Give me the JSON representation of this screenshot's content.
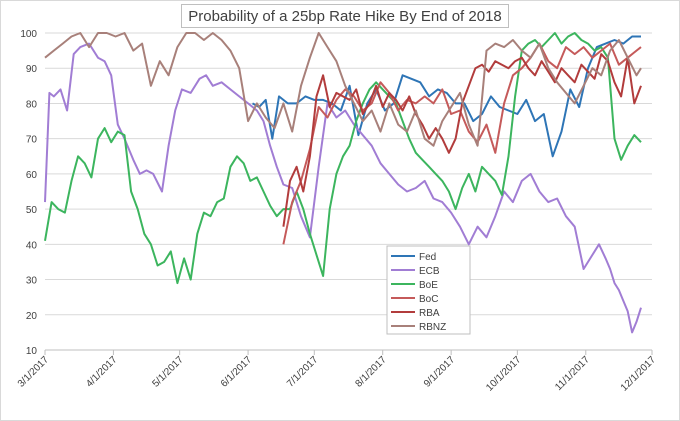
{
  "chart_data": {
    "type": "line",
    "title": "Probability of a 25bp Rate Hike By End of 2018",
    "xlabel": "",
    "ylabel": "",
    "ylim": [
      10,
      100
    ],
    "yticks": [
      10,
      20,
      30,
      40,
      50,
      60,
      70,
      80,
      90,
      100
    ],
    "xlim": [
      "3/1/2017",
      "12/1/2017"
    ],
    "x_tick_labels": [
      "3/1/2017",
      "4/1/2017",
      "5/1/2017",
      "6/1/2017",
      "7/1/2017",
      "8/1/2017",
      "9/1/2017",
      "10/1/2017",
      "11/1/2017",
      "12/1/2017"
    ],
    "grid": "horizontal",
    "legend_position": "lower-center",
    "series": [
      {
        "name": "Fed",
        "color": "#2e75b6",
        "x": [
          94,
          97,
          100,
          103,
          106,
          110,
          114,
          118,
          122,
          126,
          130,
          134,
          138,
          142,
          146,
          150,
          154,
          158,
          162,
          166,
          170,
          174,
          178,
          182,
          186,
          190,
          194,
          198,
          202,
          206,
          210,
          214,
          218,
          222,
          226,
          230,
          234,
          238,
          242,
          246,
          250,
          254,
          258,
          262,
          266,
          270
        ],
        "y": [
          80,
          79,
          81,
          70,
          82,
          80,
          80,
          82,
          81,
          81,
          80,
          78,
          85,
          71,
          80,
          84,
          78,
          80,
          88,
          87,
          86,
          82,
          84,
          83,
          80,
          80,
          75,
          77,
          82,
          79,
          78,
          77,
          81,
          75,
          77,
          65,
          72,
          84,
          79,
          90,
          96,
          97,
          98,
          97,
          99,
          99
        ]
      },
      {
        "name": "ECB",
        "color": "#a17dd4",
        "x": [
          0,
          2,
          4,
          7,
          10,
          13,
          16,
          20,
          24,
          27,
          30,
          33,
          36,
          40,
          43,
          46,
          49,
          53,
          56,
          59,
          62,
          66,
          70,
          73,
          76,
          80,
          84,
          88,
          92,
          96,
          99,
          102,
          105,
          108,
          112,
          116,
          120,
          124,
          128,
          132,
          136,
          140,
          144,
          148,
          152,
          156,
          160,
          164,
          168,
          172,
          176,
          180,
          184,
          188,
          192,
          196,
          200,
          204,
          208,
          212,
          216,
          220,
          224,
          228,
          232,
          236,
          240,
          244,
          248,
          251,
          254,
          256,
          258,
          260,
          262,
          264,
          266,
          268,
          270
        ],
        "y": [
          52,
          83,
          82,
          84,
          78,
          94,
          96,
          97,
          93,
          92,
          88,
          74,
          70,
          64,
          60,
          61,
          60,
          55,
          68,
          78,
          84,
          83,
          87,
          88,
          85,
          86,
          84,
          82,
          80,
          78,
          75,
          68,
          62,
          57,
          56,
          48,
          42,
          62,
          80,
          76,
          78,
          74,
          71,
          68,
          63,
          60,
          57,
          55,
          56,
          58,
          53,
          52,
          49,
          45,
          40,
          45,
          42,
          48,
          55,
          52,
          58,
          60,
          55,
          52,
          53,
          48,
          45,
          33,
          37,
          40,
          36,
          33,
          29,
          27,
          24,
          21,
          15,
          18,
          22
        ]
      },
      {
        "name": "BoE",
        "color": "#3cb55e",
        "x": [
          0,
          3,
          6,
          9,
          12,
          15,
          18,
          21,
          24,
          27,
          30,
          33,
          36,
          39,
          42,
          45,
          48,
          51,
          54,
          57,
          60,
          63,
          66,
          69,
          72,
          75,
          78,
          81,
          84,
          87,
          90,
          93,
          96,
          99,
          102,
          105,
          108,
          111,
          114,
          117,
          120,
          123,
          126,
          129,
          132,
          135,
          138,
          141,
          144,
          147,
          150,
          153,
          156,
          159,
          162,
          165,
          168,
          171,
          174,
          177,
          180,
          183,
          186,
          189,
          192,
          195,
          198,
          201,
          204,
          207,
          210,
          213,
          216,
          219,
          222,
          225,
          228,
          231,
          234,
          237,
          240,
          243,
          246,
          249,
          252,
          255,
          258,
          261,
          264,
          267,
          270
        ],
        "y": [
          41,
          52,
          50,
          49,
          58,
          65,
          63,
          59,
          70,
          73,
          69,
          72,
          71,
          55,
          50,
          43,
          40,
          34,
          35,
          38,
          29,
          36,
          30,
          43,
          49,
          48,
          52,
          53,
          62,
          65,
          63,
          58,
          59,
          55,
          51,
          48,
          50,
          50,
          55,
          50,
          43,
          37,
          31,
          50,
          60,
          65,
          68,
          75,
          80,
          84,
          86,
          84,
          82,
          80,
          75,
          70,
          66,
          64,
          62,
          60,
          58,
          55,
          50,
          56,
          60,
          55,
          62,
          60,
          58,
          54,
          65,
          82,
          95,
          97,
          98,
          96,
          98,
          100,
          97,
          99,
          100,
          98,
          97,
          95,
          96,
          93,
          70,
          64,
          68,
          71,
          69
        ]
      },
      {
        "name": "BoC",
        "color": "#c55a5a",
        "x": [
          108,
          112,
          116,
          120,
          124,
          128,
          132,
          136,
          140,
          144,
          148,
          152,
          156,
          160,
          164,
          168,
          172,
          176,
          180,
          184,
          188,
          192,
          196,
          200,
          204,
          208,
          212,
          216,
          220,
          224,
          228,
          232,
          236,
          240,
          244,
          248,
          252,
          256,
          260,
          264,
          268,
          270
        ],
        "y": [
          40,
          52,
          58,
          67,
          79,
          76,
          81,
          84,
          82,
          78,
          80,
          86,
          83,
          78,
          81,
          80,
          82,
          80,
          84,
          77,
          78,
          72,
          69,
          74,
          66,
          80,
          88,
          90,
          93,
          97,
          92,
          90,
          96,
          94,
          96,
          93,
          95,
          97,
          91,
          93,
          95,
          96
        ]
      },
      {
        "name": "RBA",
        "color": "#b23c3c",
        "x": [
          108,
          111,
          114,
          117,
          120,
          123,
          126,
          129,
          132,
          135,
          138,
          141,
          144,
          147,
          150,
          153,
          156,
          159,
          162,
          165,
          168,
          171,
          174,
          177,
          180,
          183,
          186,
          189,
          192,
          195,
          198,
          201,
          204,
          207,
          210,
          213,
          216,
          219,
          222,
          225,
          228,
          231,
          234,
          237,
          240,
          243,
          246,
          249,
          252,
          255,
          258,
          261,
          264,
          267,
          270
        ],
        "y": [
          45,
          58,
          62,
          55,
          65,
          82,
          88,
          79,
          83,
          82,
          81,
          84,
          77,
          80,
          85,
          79,
          83,
          81,
          78,
          82,
          77,
          74,
          70,
          73,
          70,
          66,
          70,
          80,
          85,
          90,
          91,
          89,
          92,
          91,
          90,
          92,
          93,
          90,
          88,
          92,
          89,
          86,
          90,
          88,
          86,
          91,
          89,
          87,
          94,
          92,
          86,
          82,
          93,
          80,
          85
        ]
      },
      {
        "name": "RBNZ",
        "color": "#a8807a",
        "x": [
          0,
          4,
          8,
          12,
          16,
          20,
          24,
          28,
          32,
          36,
          40,
          44,
          48,
          52,
          56,
          60,
          64,
          68,
          72,
          76,
          80,
          84,
          88,
          92,
          96,
          100,
          104,
          108,
          112,
          116,
          120,
          124,
          128,
          132,
          136,
          140,
          144,
          148,
          152,
          156,
          160,
          164,
          168,
          172,
          176,
          180,
          184,
          188,
          192,
          196,
          200,
          204,
          208,
          212,
          216,
          220,
          224,
          228,
          232,
          236,
          240,
          244,
          248,
          252,
          256,
          260,
          264,
          268,
          270
        ],
        "y": [
          93,
          95,
          97,
          99,
          100,
          96,
          100,
          100,
          99,
          100,
          95,
          97,
          85,
          92,
          88,
          96,
          100,
          100,
          98,
          100,
          98,
          95,
          90,
          75,
          80,
          76,
          73,
          80,
          72,
          85,
          93,
          100,
          96,
          92,
          85,
          80,
          75,
          78,
          72,
          80,
          74,
          72,
          78,
          70,
          68,
          75,
          79,
          83,
          74,
          68,
          95,
          97,
          96,
          98,
          95,
          93,
          97,
          90,
          86,
          83,
          80,
          85,
          90,
          88,
          95,
          98,
          93,
          88,
          90
        ]
      }
    ]
  },
  "legend": [
    "Fed",
    "ECB",
    "BoE",
    "BoC",
    "RBA",
    "RBNZ"
  ],
  "colors": {
    "grid": "#d9d9d9",
    "axis": "#bfbfbf",
    "text": "#404040"
  }
}
